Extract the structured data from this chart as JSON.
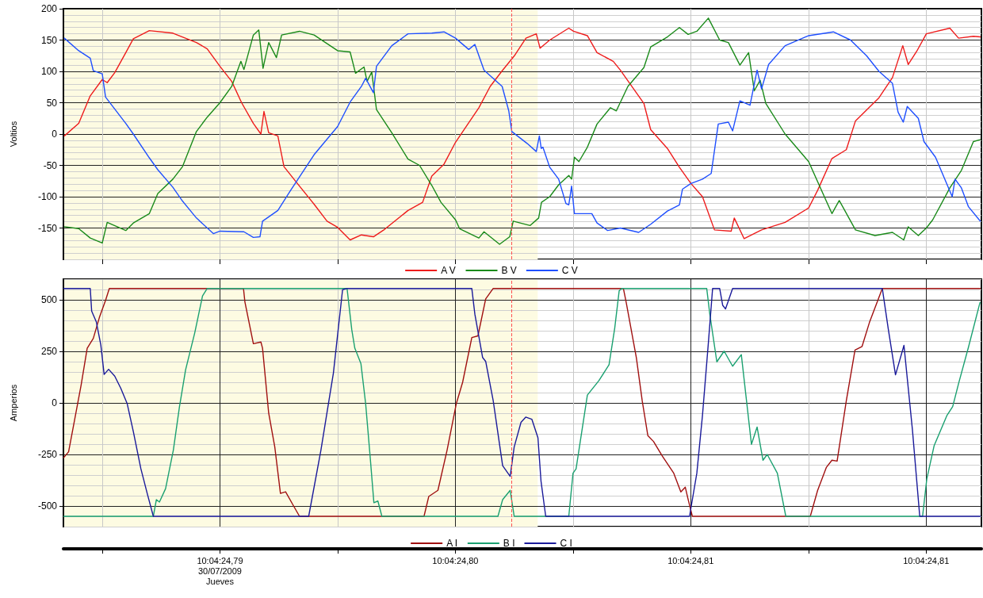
{
  "chart_data": [
    {
      "type": "line",
      "ylabel": "Voltios",
      "xlim": [
        "2009-07-30T10:04:24.78335",
        "2009-07-30T10:04:24.82235"
      ],
      "ylim": [
        -200,
        200
      ],
      "xticks": [
        {
          "value": "2009-07-30T10:04:24.785",
          "label": null
        },
        {
          "value": "2009-07-30T10:04:24.79",
          "label": null
        },
        {
          "value": "2009-07-30T10:04:24.795",
          "label": null
        },
        {
          "value": "2009-07-30T10:04:24.80",
          "label": null
        },
        {
          "value": "2009-07-30T10:04:24.805",
          "label": null
        },
        {
          "value": "2009-07-30T10:04:24.81",
          "label": null
        },
        {
          "value": "2009-07-30T10:04:24.815",
          "label": null
        },
        {
          "value": "2009-07-30T10:04:24.82",
          "label": null
        }
      ],
      "yticks": [
        -150,
        -100,
        -50,
        0,
        50,
        100,
        150,
        200
      ],
      "tick_labels": "y",
      "grid": true,
      "legend": "bottom",
      "marker": "none",
      "line_style": "solid",
      "bands": [
        {
          "axis": "x",
          "from": "2009-07-30T10:04:24.78335",
          "to": "2009-07-30T10:04:24.8035",
          "color": "#fdfbe2"
        }
      ],
      "ref_lines": [
        {
          "axis": "x",
          "value": "2009-07-30T10:04:24.8024",
          "color": "#ff5050",
          "line_style": "dashed"
        }
      ],
      "series": [
        {
          "name": "A V",
          "color": "#ee1c1c",
          "x": [
            "2009-07-30T10:04:24.78339",
            "2009-07-30T10:04:24.784",
            "2009-07-30T10:04:24.78449",
            "2009-07-30T10:04:24.785",
            "2009-07-30T10:04:24.78521",
            "2009-07-30T10:04:24.78553",
            "2009-07-30T10:04:24.786",
            "2009-07-30T10:04:24.78632",
            "2009-07-30T10:04:24.787",
            "2009-07-30T10:04:24.788",
            "2009-07-30T10:04:24.789",
            "2009-07-30T10:04:24.78946",
            "2009-07-30T10:04:24.79",
            "2009-07-30T10:04:24.7905",
            "2009-07-30T10:04:24.79092",
            "2009-07-30T10:04:24.79142",
            "2009-07-30T10:04:24.79174",
            "2009-07-30T10:04:24.79187",
            "2009-07-30T10:04:24.79207",
            "2009-07-30T10:04:24.79246",
            "2009-07-30T10:04:24.79272",
            "2009-07-30T10:04:24.79325",
            "2009-07-30T10:04:24.794",
            "2009-07-30T10:04:24.79455",
            "2009-07-30T10:04:24.795",
            "2009-07-30T10:04:24.79553",
            "2009-07-30T10:04:24.79601",
            "2009-07-30T10:04:24.79652",
            "2009-07-30T10:04:24.797",
            "2009-07-30T10:04:24.79799",
            "2009-07-30T10:04:24.79861",
            "2009-07-30T10:04:24.799",
            "2009-07-30T10:04:24.79952",
            "2009-07-30T10:04:24.80001",
            "2009-07-30T10:04:24.801",
            "2009-07-30T10:04:24.80148",
            "2009-07-30T10:04:24.80199",
            "2009-07-30T10:04:24.80253",
            "2009-07-30T10:04:24.803",
            "2009-07-30T10:04:24.80344",
            "2009-07-30T10:04:24.8036",
            "2009-07-30T10:04:24.80401",
            "2009-07-30T10:04:24.80482",
            "2009-07-30T10:04:24.80502",
            "2009-07-30T10:04:24.80561",
            "2009-07-30T10:04:24.80602",
            "2009-07-30T10:04:24.80671",
            "2009-07-30T10:04:24.80701",
            "2009-07-30T10:04:24.80801",
            "2009-07-30T10:04:24.8083",
            "2009-07-30T10:04:24.80901",
            "2009-07-30T10:04:24.80952",
            "2009-07-30T10:04:24.81001",
            "2009-07-30T10:04:24.8105",
            "2009-07-30T10:04:24.81101",
            "2009-07-30T10:04:24.81172",
            "2009-07-30T10:04:24.81185",
            "2009-07-30T10:04:24.81227",
            "2009-07-30T10:04:24.81301",
            "2009-07-30T10:04:24.81401",
            "2009-07-30T10:04:24.81501",
            "2009-07-30T10:04:24.81539",
            "2009-07-30T10:04:24.816",
            "2009-07-30T10:04:24.81661",
            "2009-07-30T10:04:24.817",
            "2009-07-30T10:04:24.818",
            "2009-07-30T10:04:24.81857",
            "2009-07-30T10:04:24.81901",
            "2009-07-30T10:04:24.81924",
            "2009-07-30T10:04:24.8196",
            "2009-07-30T10:04:24.82001",
            "2009-07-30T10:04:24.82101",
            "2009-07-30T10:04:24.82138",
            "2009-07-30T10:04:24.82201",
            "2009-07-30T10:04:24.8223"
          ],
          "values": [
            -3,
            17,
            61,
            87,
            82,
            98,
            130,
            152,
            165,
            161,
            146,
            136,
            108,
            84,
            50,
            17,
            0,
            36,
            2,
            -3,
            -52,
            -77,
            -112,
            -139,
            -149,
            -169,
            -161,
            -164,
            -152,
            -122,
            -109,
            -67,
            -48,
            -13,
            42,
            76,
            101,
            126,
            153,
            160,
            137,
            150,
            169,
            164,
            157,
            130,
            116,
            102,
            49,
            7,
            -23,
            -53,
            -79,
            -100,
            -153,
            -155,
            -134,
            -167,
            -153,
            -141,
            -118,
            -90,
            -39,
            -25,
            21,
            58,
            90,
            141,
            111,
            132,
            160,
            169,
            153,
            156,
            155
          ]
        },
        {
          "name": "B V",
          "color": "#1a8a1a",
          "x": [
            "2009-07-30T10:04:24.78339",
            "2009-07-30T10:04:24.784",
            "2009-07-30T10:04:24.78449",
            "2009-07-30T10:04:24.785",
            "2009-07-30T10:04:24.78521",
            "2009-07-30T10:04:24.786",
            "2009-07-30T10:04:24.78632",
            "2009-07-30T10:04:24.787",
            "2009-07-30T10:04:24.78736",
            "2009-07-30T10:04:24.788",
            "2009-07-30T10:04:24.78841",
            "2009-07-30T10:04:24.789",
            "2009-07-30T10:04:24.78946",
            "2009-07-30T10:04:24.79",
            "2009-07-30T10:04:24.7905",
            "2009-07-30T10:04:24.79089",
            "2009-07-30T10:04:24.79102",
            "2009-07-30T10:04:24.79142",
            "2009-07-30T10:04:24.79165",
            "2009-07-30T10:04:24.79183",
            "2009-07-30T10:04:24.79207",
            "2009-07-30T10:04:24.7924",
            "2009-07-30T10:04:24.79262",
            "2009-07-30T10:04:24.79338",
            "2009-07-30T10:04:24.794",
            "2009-07-30T10:04:24.795",
            "2009-07-30T10:04:24.79553",
            "2009-07-30T10:04:24.79576",
            "2009-07-30T10:04:24.79612",
            "2009-07-30T10:04:24.79625",
            "2009-07-30T10:04:24.79645",
            "2009-07-30T10:04:24.79665",
            "2009-07-30T10:04:24.7973",
            "2009-07-30T10:04:24.79799",
            "2009-07-30T10:04:24.79848",
            "2009-07-30T10:04:24.799",
            "2009-07-30T10:04:24.79939",
            "2009-07-30T10:04:24.80001",
            "2009-07-30T10:04:24.80018",
            "2009-07-30T10:04:24.801",
            "2009-07-30T10:04:24.80122",
            "2009-07-30T10:04:24.80188",
            "2009-07-30T10:04:24.80231",
            "2009-07-30T10:04:24.80246",
            "2009-07-30T10:04:24.80318",
            "2009-07-30T10:04:24.80354",
            "2009-07-30T10:04:24.80366",
            "2009-07-30T10:04:24.80401",
            "2009-07-30T10:04:24.80439",
            "2009-07-30T10:04:24.80482",
            "2009-07-30T10:04:24.80494",
            "2009-07-30T10:04:24.80506",
            "2009-07-30T10:04:24.80525",
            "2009-07-30T10:04:24.80561",
            "2009-07-30T10:04:24.80602",
            "2009-07-30T10:04:24.80659",
            "2009-07-30T10:04:24.80684",
            "2009-07-30T10:04:24.80733",
            "2009-07-30T10:04:24.80801",
            "2009-07-30T10:04:24.8083",
            "2009-07-30T10:04:24.80901",
            "2009-07-30T10:04:24.80952",
            "2009-07-30T10:04:24.80989",
            "2009-07-30T10:04:24.81026",
            "2009-07-30T10:04:24.81075",
            "2009-07-30T10:04:24.81123",
            "2009-07-30T10:04:24.8116",
            "2009-07-30T10:04:24.81209",
            "2009-07-30T10:04:24.81246",
            "2009-07-30T10:04:24.8127",
            "2009-07-30T10:04:24.81295",
            "2009-07-30T10:04:24.81319",
            "2009-07-30T10:04:24.81401",
            "2009-07-30T10:04:24.81501",
            "2009-07-30T10:04:24.816",
            "2009-07-30T10:04:24.81631",
            "2009-07-30T10:04:24.817",
            "2009-07-30T10:04:24.81783",
            "2009-07-30T10:04:24.81857",
            "2009-07-30T10:04:24.81905",
            "2009-07-30T10:04:24.81924",
            "2009-07-30T10:04:24.81967",
            "2009-07-30T10:04:24.82001",
            "2009-07-30T10:04:24.82028",
            "2009-07-30T10:04:24.82101",
            "2009-07-30T10:04:24.8215",
            "2009-07-30T10:04:24.82201",
            "2009-07-30T10:04:24.8223"
          ],
          "values": [
            -148,
            -151,
            -166,
            -174,
            -141,
            -154,
            -142,
            -127,
            -95,
            -72,
            -52,
            4,
            27,
            50,
            76,
            116,
            103,
            158,
            166,
            105,
            146,
            122,
            158,
            164,
            158,
            133,
            131,
            97,
            107,
            84,
            99,
            39,
            2,
            -40,
            -50,
            -82,
            -109,
            -137,
            -151,
            -166,
            -156,
            -176,
            -164,
            -139,
            -146,
            -134,
            -109,
            -100,
            -81,
            -66,
            -72,
            -37,
            -44,
            -21,
            16,
            42,
            37,
            76,
            106,
            139,
            155,
            170,
            159,
            164,
            185,
            150,
            146,
            110,
            130,
            69,
            86,
            49,
            0,
            -44,
            -127,
            -106,
            -153,
            -162,
            -157,
            -169,
            -148,
            -162,
            -150,
            -137,
            -86,
            -58,
            -12,
            -9
          ]
        },
        {
          "name": "C V",
          "color": "#1f4fff",
          "x": [
            "2009-07-30T10:04:24.78339",
            "2009-07-30T10:04:24.784",
            "2009-07-30T10:04:24.78449",
            "2009-07-30T10:04:24.78462",
            "2009-07-30T10:04:24.785",
            "2009-07-30T10:04:24.78514",
            "2009-07-30T10:04:24.786",
            "2009-07-30T10:04:24.78632",
            "2009-07-30T10:04:24.787",
            "2009-07-30T10:04:24.78736",
            "2009-07-30T10:04:24.788",
            "2009-07-30T10:04:24.78841",
            "2009-07-30T10:04:24.789",
            "2009-07-30T10:04:24.78972",
            "2009-07-30T10:04:24.79",
            "2009-07-30T10:04:24.79102",
            "2009-07-30T10:04:24.79142",
            "2009-07-30T10:04:24.7917",
            "2009-07-30T10:04:24.79181",
            "2009-07-30T10:04:24.79246",
            "2009-07-30T10:04:24.793",
            "2009-07-30T10:04:24.794",
            "2009-07-30T10:04:24.795",
            "2009-07-30T10:04:24.79553",
            "2009-07-30T10:04:24.79601",
            "2009-07-30T10:04:24.79619",
            "2009-07-30T10:04:24.79652",
            "2009-07-30T10:04:24.79665",
            "2009-07-30T10:04:24.7973",
            "2009-07-30T10:04:24.79799",
            "2009-07-30T10:04:24.799",
            "2009-07-30T10:04:24.79952",
            "2009-07-30T10:04:24.80001",
            "2009-07-30T10:04:24.80057",
            "2009-07-30T10:04:24.80083",
            "2009-07-30T10:04:24.80122",
            "2009-07-30T10:04:24.80199",
            "2009-07-30T10:04:24.80227",
            "2009-07-30T10:04:24.8024",
            "2009-07-30T10:04:24.80305",
            "2009-07-30T10:04:24.80344",
            "2009-07-30T10:04:24.80357",
            "2009-07-30T10:04:24.80365",
            "2009-07-30T10:04:24.80372",
            "2009-07-30T10:04:24.80401",
            "2009-07-30T10:04:24.80439",
            "2009-07-30T10:04:24.8047",
            "2009-07-30T10:04:24.80482",
            "2009-07-30T10:04:24.80494",
            "2009-07-30T10:04:24.80506",
            "2009-07-30T10:04:24.8058",
            "2009-07-30T10:04:24.80602",
            "2009-07-30T10:04:24.80647",
            "2009-07-30T10:04:24.80701",
            "2009-07-30T10:04:24.80779",
            "2009-07-30T10:04:24.8083",
            "2009-07-30T10:04:24.80901",
            "2009-07-30T10:04:24.80952",
            "2009-07-30T10:04:24.80965",
            "2009-07-30T10:04:24.81001",
            "2009-07-30T10:04:24.8105",
            "2009-07-30T10:04:24.81087",
            "2009-07-30T10:04:24.81117",
            "2009-07-30T10:04:24.8116",
            "2009-07-30T10:04:24.81178",
            "2009-07-30T10:04:24.81209",
            "2009-07-30T10:04:24.81252",
            "2009-07-30T10:04:24.81282",
            "2009-07-30T10:04:24.81301",
            "2009-07-30T10:04:24.81331",
            "2009-07-30T10:04:24.81401",
            "2009-07-30T10:04:24.81501",
            "2009-07-30T10:04:24.81606",
            "2009-07-30T10:04:24.81679",
            "2009-07-30T10:04:24.81747",
            "2009-07-30T10:04:24.818",
            "2009-07-30T10:04:24.81857",
            "2009-07-30T10:04:24.81881",
            "2009-07-30T10:04:24.81903",
            "2009-07-30T10:04:24.8192",
            "2009-07-30T10:04:24.81967",
            "2009-07-30T10:04:24.81991",
            "2009-07-30T10:04:24.8204",
            "2009-07-30T10:04:24.82111",
            "2009-07-30T10:04:24.82123",
            "2009-07-30T10:04:24.8215",
            "2009-07-30T10:04:24.8218",
            "2009-07-30T10:04:24.8223"
          ],
          "values": [
            153,
            133,
            121,
            101,
            96,
            59,
            17,
            0,
            -38,
            -57,
            -85,
            -107,
            -134,
            -159,
            -155,
            -156,
            -165,
            -164,
            -139,
            -122,
            -90,
            -33,
            12,
            51,
            76,
            89,
            66,
            108,
            141,
            160,
            161,
            163,
            153,
            135,
            143,
            102,
            76,
            37,
            4,
            -15,
            -28,
            -3,
            -23,
            -21,
            -53,
            -72,
            -111,
            -113,
            -83,
            -127,
            -127,
            -142,
            -154,
            -150,
            -157,
            -144,
            -123,
            -113,
            -88,
            -79,
            -72,
            -63,
            16,
            19,
            5,
            53,
            46,
            102,
            72,
            111,
            141,
            157,
            163,
            150,
            125,
            100,
            81,
            35,
            19,
            44,
            25,
            -12,
            -37,
            -100,
            -72,
            -86,
            -116,
            -139
          ]
        }
      ]
    },
    {
      "type": "line",
      "ylabel": "Amperios",
      "xlim": [
        "2009-07-30T10:04:24.78335",
        "2009-07-30T10:04:24.82235"
      ],
      "ylim": [
        -600,
        600
      ],
      "xticks": [
        {
          "value": "2009-07-30T10:04:24.785",
          "label": null
        },
        {
          "value": "2009-07-30T10:04:24.79",
          "label": "10:04:24,79\n30/07/2009\nJueves"
        },
        {
          "value": "2009-07-30T10:04:24.795",
          "label": null
        },
        {
          "value": "2009-07-30T10:04:24.80",
          "label": "10:04:24,80"
        },
        {
          "value": "2009-07-30T10:04:24.805",
          "label": null
        },
        {
          "value": "2009-07-30T10:04:24.81",
          "label": "10:04:24,81"
        },
        {
          "value": "2009-07-30T10:04:24.815",
          "label": null
        },
        {
          "value": "2009-07-30T10:04:24.82",
          "label": "10:04:24,81"
        }
      ],
      "yticks": [
        -500,
        -250,
        0,
        250,
        500
      ],
      "grid": true,
      "legend": "bottom",
      "marker": "none",
      "line_style": "solid",
      "bands": [
        {
          "axis": "x",
          "from": "2009-07-30T10:04:24.78335",
          "to": "2009-07-30T10:04:24.8035",
          "color": "#fdfbe2"
        }
      ],
      "ref_lines": [
        {
          "axis": "x",
          "value": "2009-07-30T10:04:24.8024",
          "color": "#ff5050",
          "line_style": "dashed"
        }
      ],
      "series": [
        {
          "name": "A I",
          "color": "#a01010",
          "x": [
            "2009-07-30T10:04:24.78336",
            "2009-07-30T10:04:24.78357",
            "2009-07-30T10:04:24.78383",
            "2009-07-30T10:04:24.7841",
            "2009-07-30T10:04:24.78436",
            "2009-07-30T10:04:24.78462",
            "2009-07-30T10:04:24.78488",
            "2009-07-30T10:04:24.78514",
            "2009-07-30T10:04:24.7853",
            "2009-07-30T10:04:24.791",
            "2009-07-30T10:04:24.79106",
            "2009-07-30T10:04:24.79142",
            "2009-07-30T10:04:24.79174",
            "2009-07-30T10:04:24.79181",
            "2009-07-30T10:04:24.79207",
            "2009-07-30T10:04:24.79233",
            "2009-07-30T10:04:24.79257",
            "2009-07-30T10:04:24.79279",
            "2009-07-30T10:04:24.79312",
            "2009-07-30T10:04:24.79338",
            "2009-07-30T10:04:24.79867",
            "2009-07-30T10:04:24.79887",
            "2009-07-30T10:04:24.79926",
            "2009-07-30T10:04:24.79965",
            "2009-07-30T10:04:24.80004",
            "2009-07-30T10:04:24.80031",
            "2009-07-30T10:04:24.8007",
            "2009-07-30T10:04:24.80096",
            "2009-07-30T10:04:24.80129",
            "2009-07-30T10:04:24.80161",
            "2009-07-30T10:04:24.80714",
            "2009-07-30T10:04:24.80726",
            "2009-07-30T10:04:24.80769",
            "2009-07-30T10:04:24.80794",
            "2009-07-30T10:04:24.80818",
            "2009-07-30T10:04:24.80842",
            "2009-07-30T10:04:24.80879",
            "2009-07-30T10:04:24.80928",
            "2009-07-30T10:04:24.80958",
            "2009-07-30T10:04:24.80977",
            "2009-07-30T10:04:24.80989",
            "2009-07-30T10:04:24.81007",
            "2009-07-30T10:04:24.81508",
            "2009-07-30T10:04:24.81539",
            "2009-07-30T10:04:24.81576",
            "2009-07-30T10:04:24.816",
            "2009-07-30T10:04:24.81622",
            "2009-07-30T10:04:24.81661",
            "2009-07-30T10:04:24.81698",
            "2009-07-30T10:04:24.81728",
            "2009-07-30T10:04:24.81759",
            "2009-07-30T10:04:24.81814",
            "2009-07-30T10:04:24.8223"
          ],
          "values": [
            -266,
            -237,
            -79,
            85,
            265,
            313,
            415,
            497,
            555,
            555,
            490,
            287,
            295,
            265,
            -49,
            -214,
            -439,
            -431,
            -498,
            -550,
            -550,
            -454,
            -424,
            -229,
            -4,
            100,
            317,
            325,
            504,
            555,
            555,
            487,
            220,
            10,
            -159,
            -187,
            -257,
            -341,
            -432,
            -409,
            -468,
            -550,
            -550,
            -425,
            -313,
            -278,
            -282,
            10,
            256,
            274,
            389,
            555,
            555
          ]
        },
        {
          "name": "B I",
          "color": "#1aa070",
          "x": [
            "2009-07-30T10:04:24.78336",
            "2009-07-30T10:04:24.78717",
            "2009-07-30T10:04:24.7873",
            "2009-07-30T10:04:24.78743",
            "2009-07-30T10:04:24.78769",
            "2009-07-30T10:04:24.78802",
            "2009-07-30T10:04:24.78828",
            "2009-07-30T10:04:24.78854",
            "2009-07-30T10:04:24.78893",
            "2009-07-30T10:04:24.78926",
            "2009-07-30T10:04:24.78946",
            "2009-07-30T10:04:24.7954",
            "2009-07-30T10:04:24.7956",
            "2009-07-30T10:04:24.79573",
            "2009-07-30T10:04:24.79599",
            "2009-07-30T10:04:24.79619",
            "2009-07-30T10:04:24.79638",
            "2009-07-30T10:04:24.79654",
            "2009-07-30T10:04:24.79671",
            "2009-07-30T10:04:24.79688",
            "2009-07-30T10:04:24.80181",
            "2009-07-30T10:04:24.80201",
            "2009-07-30T10:04:24.80233",
            "2009-07-30T10:04:24.8025",
            "2009-07-30T10:04:24.80482",
            "2009-07-30T10:04:24.805",
            "2009-07-30T10:04:24.80513",
            "2009-07-30T10:04:24.80561",
            "2009-07-30T10:04:24.8061",
            "2009-07-30T10:04:24.80653",
            "2009-07-30T10:04:24.80677",
            "2009-07-30T10:04:24.80696",
            "2009-07-30T10:04:24.80706",
            "2009-07-30T10:04:24.81068",
            "2009-07-30T10:04:24.81081",
            "2009-07-30T10:04:24.81111",
            "2009-07-30T10:04:24.81142",
            "2009-07-30T10:04:24.81178",
            "2009-07-30T10:04:24.81215",
            "2009-07-30T10:04:24.81258",
            "2009-07-30T10:04:24.81282",
            "2009-07-30T10:04:24.81307",
            "2009-07-30T10:04:24.81325",
            "2009-07-30T10:04:24.81368",
            "2009-07-30T10:04:24.81404",
            "2009-07-30T10:04:24.81985",
            "2009-07-30T10:04:24.82003",
            "2009-07-30T10:04:24.82034",
            "2009-07-30T10:04:24.82089",
            "2009-07-30T10:04:24.82113",
            "2009-07-30T10:04:24.82138",
            "2009-07-30T10:04:24.8218",
            "2009-07-30T10:04:24.82229"
          ],
          "values": [
            -550,
            -550,
            -469,
            -481,
            -416,
            -229,
            -19,
            160,
            340,
            519,
            555,
            555,
            355,
            265,
            190,
            -4,
            -259,
            -484,
            -476,
            -550,
            -550,
            -469,
            -424,
            -550,
            -550,
            -341,
            -320,
            38,
            108,
            185,
            361,
            543,
            555,
            555,
            431,
            199,
            251,
            178,
            234,
            -201,
            -117,
            -278,
            -250,
            -341,
            -550,
            -550,
            -369,
            -208,
            -60,
            -18,
            94,
            270,
            487
          ]
        },
        {
          "name": "C I",
          "color": "#1a1a9a",
          "x": [
            "2009-07-30T10:04:24.78336",
            "2009-07-30T10:04:24.78449",
            "2009-07-30T10:04:24.78455",
            "2009-07-30T10:04:24.78475",
            "2009-07-30T10:04:24.78494",
            "2009-07-30T10:04:24.78508",
            "2009-07-30T10:04:24.78527",
            "2009-07-30T10:04:24.78553",
            "2009-07-30T10:04:24.78579",
            "2009-07-30T10:04:24.78606",
            "2009-07-30T10:04:24.78632",
            "2009-07-30T10:04:24.78664",
            "2009-07-30T10:04:24.78691",
            "2009-07-30T10:04:24.78717",
            "2009-07-30T10:04:24.79377",
            "2009-07-30T10:04:24.79429",
            "2009-07-30T10:04:24.79482",
            "2009-07-30T10:04:24.79521",
            "2009-07-30T10:04:24.7954",
            "2009-07-30T10:04:24.8007",
            "2009-07-30T10:04:24.80083",
            "2009-07-30T10:04:24.80116",
            "2009-07-30T10:04:24.80129",
            "2009-07-30T10:04:24.80161",
            "2009-07-30T10:04:24.80201",
            "2009-07-30T10:04:24.80233",
            "2009-07-30T10:04:24.8025",
            "2009-07-30T10:04:24.80279",
            "2009-07-30T10:04:24.80299",
            "2009-07-30T10:04:24.80325",
            "2009-07-30T10:04:24.80351",
            "2009-07-30T10:04:24.80364",
            "2009-07-30T10:04:24.80384",
            "2009-07-30T10:04:24.80995",
            "2009-07-30T10:04:24.81026",
            "2009-07-30T10:04:24.8105",
            "2009-07-30T10:04:24.81075",
            "2009-07-30T10:04:24.81093",
            "2009-07-30T10:04:24.81123",
            "2009-07-30T10:04:24.81136",
            "2009-07-30T10:04:24.81148",
            "2009-07-30T10:04:24.81178",
            "2009-07-30T10:04:24.81814",
            "2009-07-30T10:04:24.81839",
            "2009-07-30T10:04:24.8187",
            "2009-07-30T10:04:24.81906",
            "2009-07-30T10:04:24.81942",
            "2009-07-30T10:04:24.81973",
            "2009-07-30T10:04:24.8223"
          ],
          "values": [
            555,
            555,
            445,
            392,
            280,
            138,
            163,
            130,
            70,
            -4,
            -139,
            -319,
            -439,
            -550,
            -550,
            -229,
            145,
            549,
            555,
            555,
            430,
            220,
            201,
            10,
            -304,
            -356,
            -214,
            -94,
            -69,
            -79,
            -169,
            -379,
            -550,
            -550,
            -341,
            -60,
            291,
            555,
            555,
            473,
            456,
            555,
            555,
            361,
            136,
            279,
            -131,
            -550,
            -550
          ]
        }
      ]
    }
  ]
}
